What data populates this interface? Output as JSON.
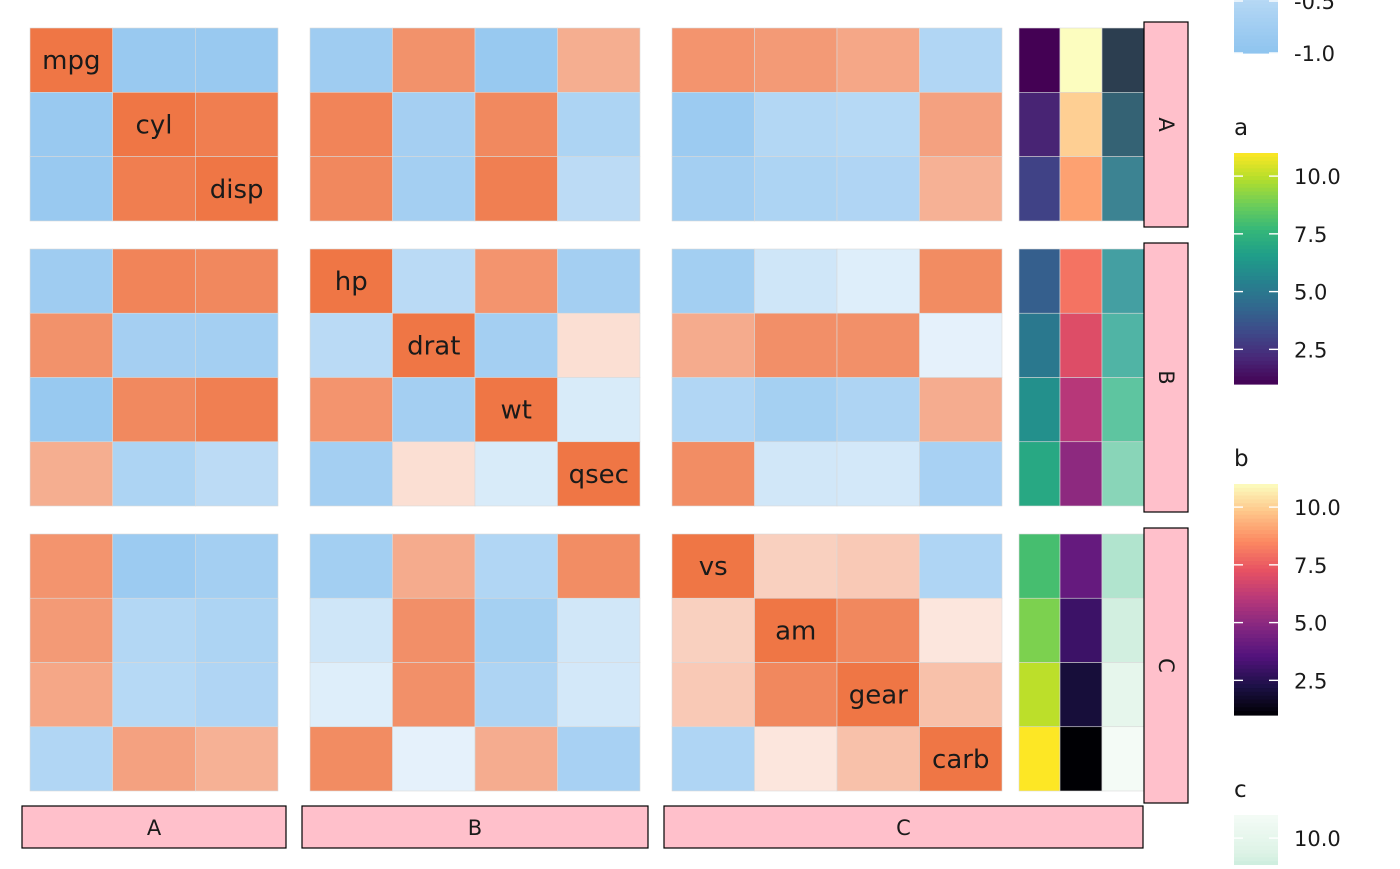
{
  "chart_data": {
    "type": "heatmap",
    "title": "",
    "variables": [
      "mpg",
      "cyl",
      "disp",
      "hp",
      "drat",
      "wt",
      "qsec",
      "vs",
      "am",
      "gear",
      "carb"
    ],
    "groups": [
      {
        "name": "A",
        "vars": [
          "mpg",
          "cyl",
          "disp"
        ]
      },
      {
        "name": "B",
        "vars": [
          "hp",
          "drat",
          "wt",
          "qsec"
        ]
      },
      {
        "name": "C",
        "vars": [
          "vs",
          "am",
          "gear",
          "carb"
        ]
      }
    ],
    "column_strip_labels": [
      "A",
      "B",
      "C"
    ],
    "row_strip_labels": [
      "A",
      "B",
      "C"
    ],
    "correlation": [
      [
        1.0,
        -0.85,
        -0.85,
        -0.78,
        0.68,
        -0.87,
        0.42,
        0.66,
        0.6,
        0.48,
        -0.55
      ],
      [
        -0.85,
        1.0,
        0.9,
        0.83,
        -0.7,
        0.78,
        -0.59,
        -0.81,
        -0.52,
        -0.49,
        0.53
      ],
      [
        -0.85,
        0.9,
        1.0,
        0.79,
        -0.71,
        0.89,
        -0.43,
        -0.71,
        -0.59,
        -0.56,
        0.39
      ],
      [
        -0.78,
        0.83,
        0.79,
        1.0,
        -0.45,
        0.66,
        -0.71,
        -0.72,
        -0.24,
        -0.13,
        0.75
      ],
      [
        0.68,
        -0.7,
        -0.71,
        -0.45,
        1.0,
        -0.71,
        0.09,
        0.44,
        0.71,
        0.7,
        -0.09
      ],
      [
        -0.87,
        0.78,
        0.89,
        0.66,
        -0.71,
        1.0,
        -0.17,
        -0.55,
        -0.69,
        -0.58,
        0.43
      ],
      [
        0.42,
        -0.59,
        -0.43,
        -0.71,
        0.09,
        -0.17,
        1.0,
        0.74,
        -0.23,
        -0.21,
        -0.66
      ],
      [
        0.66,
        -0.81,
        -0.71,
        -0.72,
        0.44,
        -0.55,
        0.74,
        1.0,
        0.17,
        0.21,
        -0.57
      ],
      [
        0.6,
        -0.52,
        -0.59,
        -0.24,
        0.71,
        -0.69,
        -0.23,
        0.17,
        1.0,
        0.79,
        0.06
      ],
      [
        0.48,
        -0.49,
        -0.56,
        -0.13,
        0.7,
        -0.58,
        -0.21,
        0.21,
        0.79,
        1.0,
        0.27
      ],
      [
        -0.55,
        0.53,
        0.39,
        0.75,
        -0.09,
        0.43,
        -0.66,
        -0.57,
        0.06,
        0.27,
        1.0
      ]
    ],
    "annotations": {
      "columns": [
        "a",
        "b",
        "c"
      ],
      "values": [
        [
          1,
          11,
          1
        ],
        [
          2,
          10,
          2
        ],
        [
          3,
          9,
          3
        ],
        [
          4,
          8,
          4
        ],
        [
          5,
          7,
          5
        ],
        [
          6,
          6,
          6
        ],
        [
          7,
          5,
          7
        ],
        [
          8,
          4,
          8
        ],
        [
          9,
          3,
          9
        ],
        [
          10,
          2,
          10
        ],
        [
          11,
          1,
          11
        ]
      ],
      "palettes": {
        "a": [
          "#440154",
          "#482878",
          "#3e4989",
          "#31688e",
          "#26828e",
          "#1f9e89",
          "#35b779",
          "#6ece58",
          "#b5de2b",
          "#fde725"
        ],
        "b": [
          "#000004",
          "#1d1147",
          "#51127c",
          "#822681",
          "#b73779",
          "#e75263",
          "#fc8961",
          "#fec488",
          "#fcfdbf"
        ],
        "c": [
          "#2c3e50",
          "#3a7a8c",
          "#46a8a8",
          "#5ec5a0",
          "#a6e0c8",
          "#ddf3e6",
          "#f4fbf6"
        ]
      }
    },
    "legends": [
      {
        "name": "correlation",
        "title": "",
        "visible_ticks": [
          "-0.5",
          "-1.0"
        ],
        "range": [
          -1,
          1
        ]
      },
      {
        "name": "a",
        "title": "a",
        "ticks": [
          "10.0",
          "7.5",
          "5.0",
          "2.5"
        ],
        "range": [
          1,
          11
        ]
      },
      {
        "name": "b",
        "title": "b",
        "ticks": [
          "10.0",
          "7.5",
          "5.0",
          "2.5"
        ],
        "range": [
          1,
          11
        ]
      },
      {
        "name": "c",
        "title": "c",
        "ticks": [
          "10.0"
        ],
        "range": [
          1,
          11
        ]
      }
    ],
    "colors": {
      "negative": "#8fc4ef",
      "zero": "#ffffff",
      "positive": "#ef7645",
      "strip_fill": "#ffc0cb",
      "grid": "#d9d9d9"
    }
  }
}
